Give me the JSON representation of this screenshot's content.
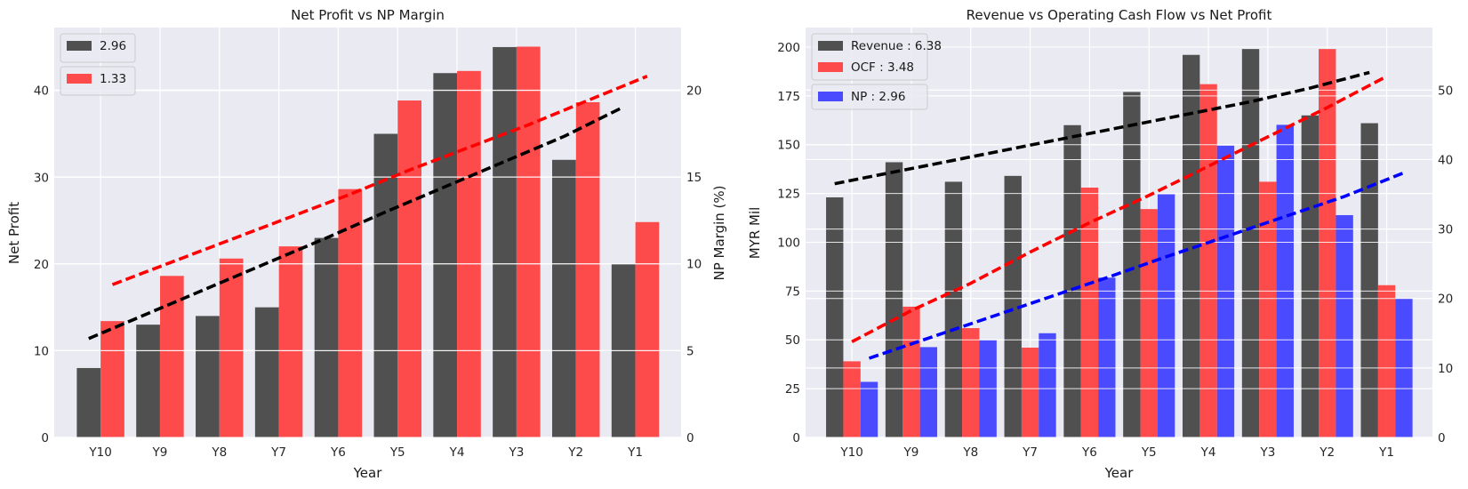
{
  "chart_data": [
    {
      "type": "bar",
      "title": "Net Profit vs NP Margin",
      "xlabel": "Year",
      "ylabel": "Net Profit",
      "y2label": "NP Margin (%)",
      "categories": [
        "Y10",
        "Y9",
        "Y8",
        "Y7",
        "Y6",
        "Y5",
        "Y4",
        "Y3",
        "Y2",
        "Y1"
      ],
      "ylim": [
        0,
        47.25
      ],
      "y2lim": [
        0,
        23.6
      ],
      "yticks": [
        0,
        10,
        20,
        30,
        40
      ],
      "y2ticks": [
        0,
        5,
        10,
        15,
        20
      ],
      "grid": true,
      "legend_position": "top-left",
      "series": [
        {
          "name": "2.96",
          "axis": "left",
          "color": "#3a3a3a",
          "values": [
            8,
            13,
            14,
            15,
            23,
            35,
            42,
            45,
            32,
            20
          ]
        },
        {
          "name": "1.33",
          "axis": "right",
          "color": "#ff3333",
          "values": [
            6.7,
            9.3,
            10.3,
            11.0,
            14.3,
            19.4,
            21.1,
            22.5,
            19.3,
            12.4
          ]
        }
      ],
      "trendlines": [
        {
          "series": "2.96",
          "axis": "left",
          "color": "#000000",
          "values": [
            11.4,
            14.3,
            17.2,
            20.1,
            23.0,
            26.0,
            28.9,
            31.8,
            34.7,
            38.1
          ]
        },
        {
          "series": "1.33",
          "axis": "right",
          "color": "#ff0000",
          "values": [
            8.8,
            10.1,
            11.4,
            12.7,
            14.0,
            15.4,
            16.7,
            18.0,
            19.4,
            20.8
          ]
        }
      ]
    },
    {
      "type": "bar",
      "title": "Revenue vs Operating Cash Flow vs Net Profit",
      "xlabel": "Year",
      "ylabel": "MYR Mil",
      "categories": [
        "Y10",
        "Y9",
        "Y8",
        "Y7",
        "Y6",
        "Y5",
        "Y4",
        "Y3",
        "Y2",
        "Y1"
      ],
      "ylim": [
        0,
        210
      ],
      "y2lim": [
        0,
        59.0
      ],
      "yticks": [
        0,
        25,
        50,
        75,
        100,
        125,
        150,
        175,
        200
      ],
      "y2ticks": [
        0,
        10,
        20,
        30,
        40,
        50
      ],
      "grid": true,
      "legend_position": "top-left",
      "series": [
        {
          "name": "Revenue : 6.38",
          "axis": "left",
          "color": "#3a3a3a",
          "values": [
            123,
            141,
            131,
            134,
            160,
            177,
            196,
            199,
            165,
            161
          ]
        },
        {
          "name": "OCF : 3.48",
          "axis": "left",
          "color": "#ff3333",
          "values": [
            39,
            67,
            56,
            46,
            128,
            117,
            181,
            131,
            199,
            78
          ]
        },
        {
          "name": "NP : 2.96",
          "axis": "right",
          "color": "#3333ff",
          "values": [
            8,
            13,
            14,
            15,
            23,
            35,
            42,
            45,
            32,
            20
          ]
        }
      ],
      "trendlines": [
        {
          "series": "Revenue : 6.38",
          "axis": "left",
          "color": "#000000",
          "values": [
            130,
            136,
            142,
            148,
            154,
            160,
            166,
            172,
            179,
            187
          ]
        },
        {
          "series": "OCF : 3.48",
          "axis": "left",
          "color": "#ff0000",
          "values": [
            49,
            65,
            79,
            95,
            110,
            124,
            139,
            154,
            169,
            185
          ]
        },
        {
          "series": "NP : 2.96",
          "axis": "right",
          "color": "#0000ff",
          "values": [
            11.4,
            14.3,
            17.2,
            20.1,
            23.0,
            26.0,
            28.9,
            31.8,
            34.7,
            38.1
          ]
        }
      ]
    }
  ]
}
